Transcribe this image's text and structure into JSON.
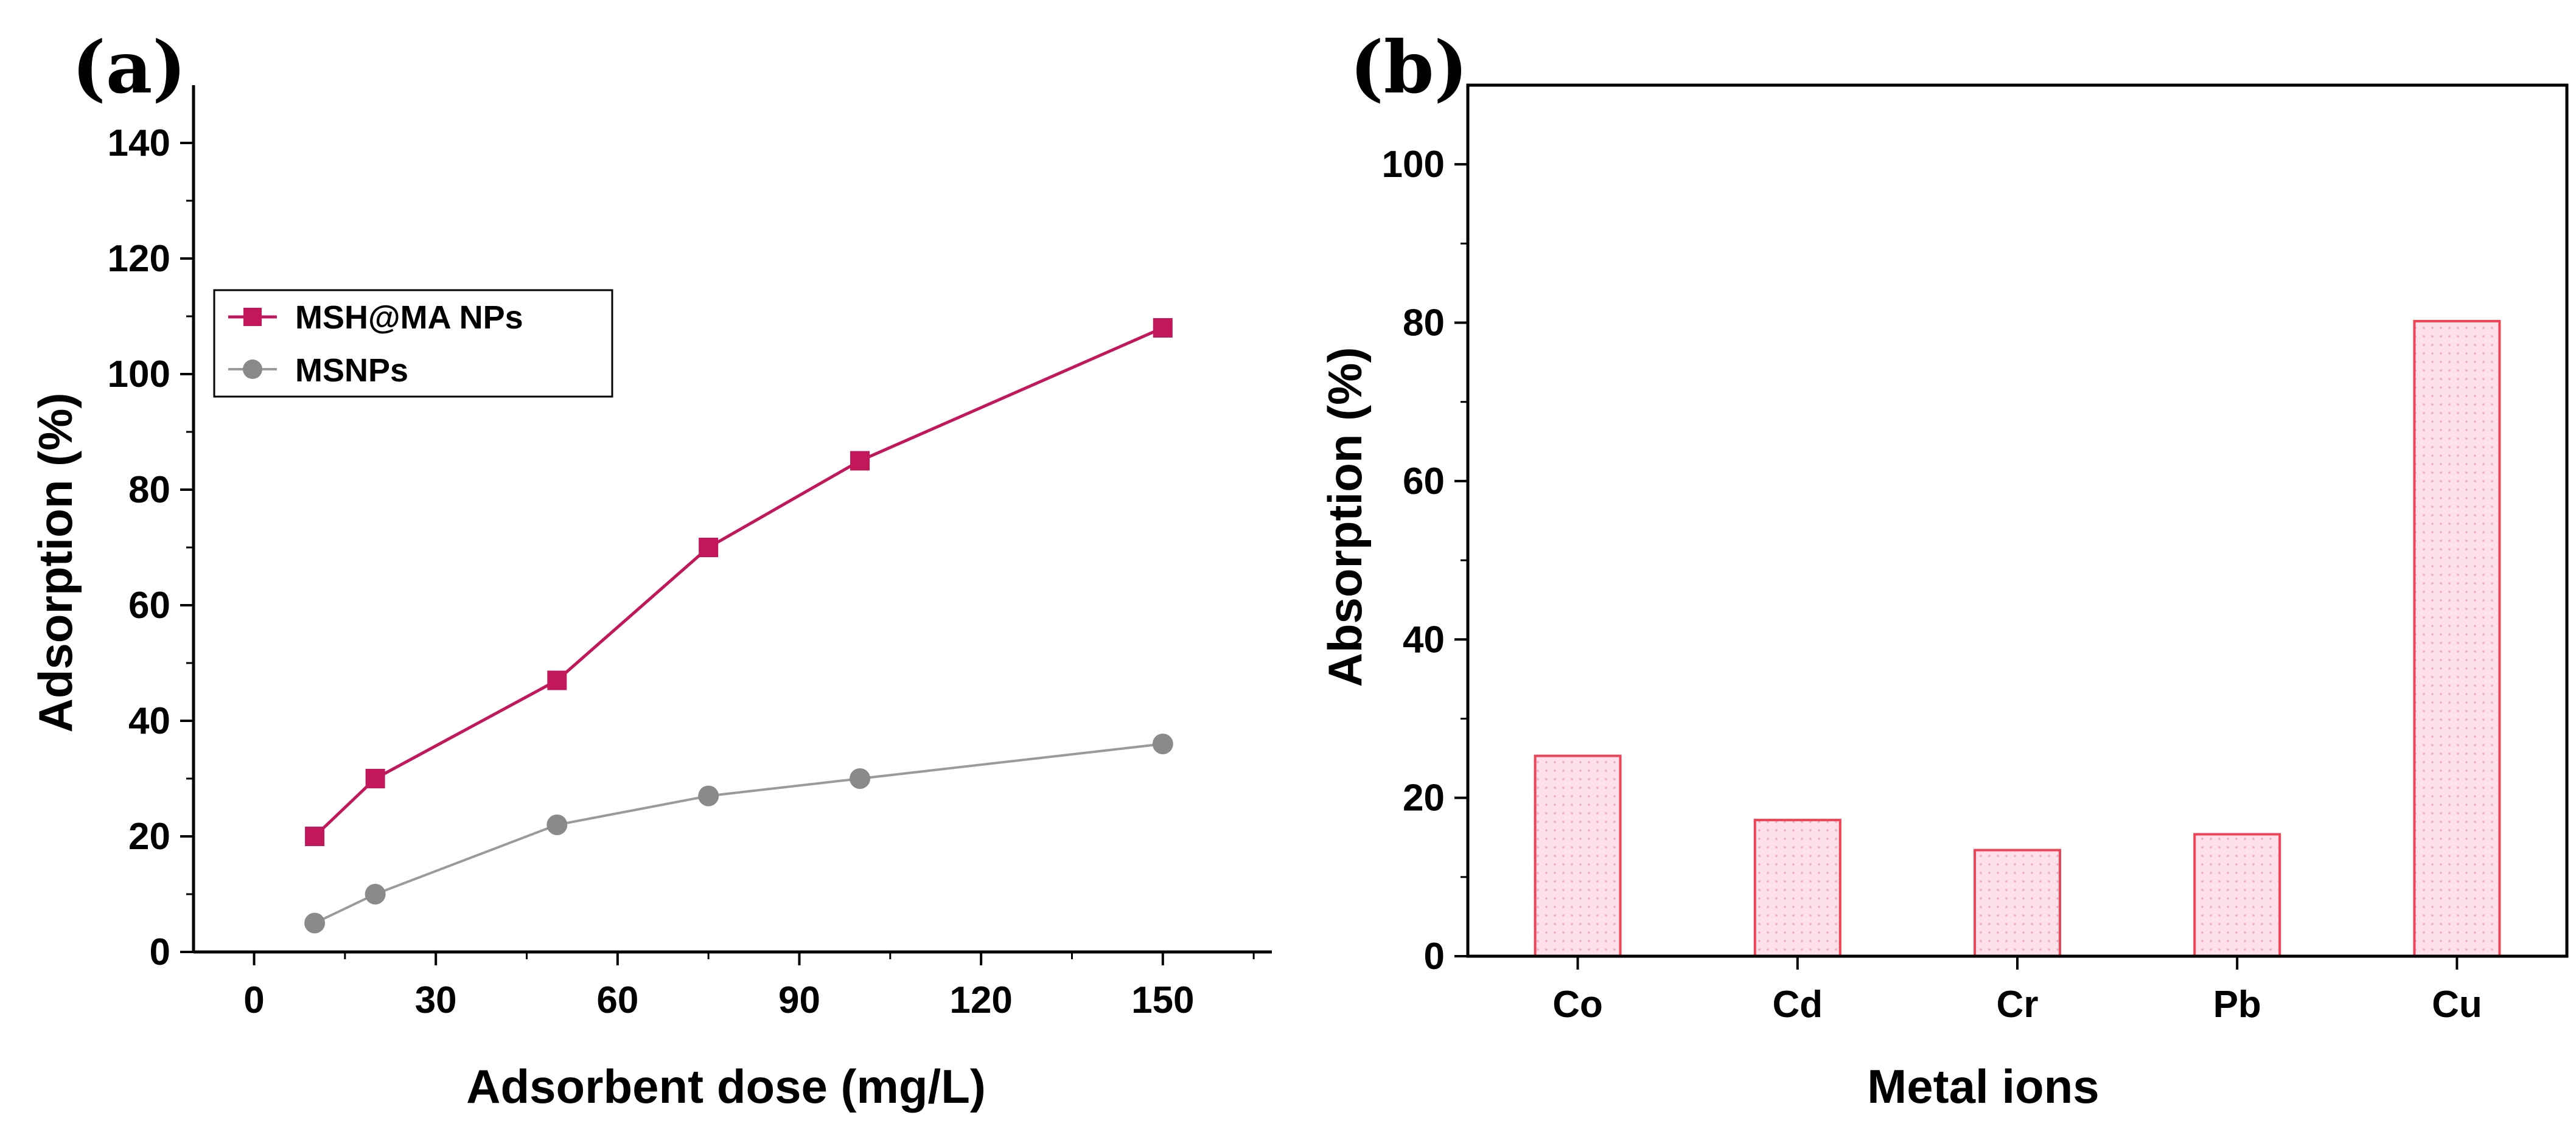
{
  "chart_data": [
    {
      "panel_label": "(a)",
      "type": "line",
      "xlabel": "Adsorbent dose (mg/L)",
      "ylabel": "Adsorption (%)",
      "xlim": [
        -10,
        168
      ],
      "ylim": [
        0,
        150
      ],
      "xticks": [
        0,
        30,
        60,
        90,
        120,
        150
      ],
      "yticks": [
        0,
        20,
        40,
        60,
        80,
        100,
        120,
        140
      ],
      "legend_position": "upper-left",
      "series": [
        {
          "name": "MSH@MA NPs",
          "color": "#c2185b",
          "marker": "square",
          "x": [
            10,
            20,
            50,
            75,
            100,
            150
          ],
          "y": [
            20,
            30,
            47,
            70,
            85,
            108
          ]
        },
        {
          "name": "MSNPs",
          "color": "#8a8a8a",
          "marker": "circle",
          "x": [
            10,
            20,
            50,
            75,
            100,
            150
          ],
          "y": [
            5,
            10,
            22,
            27,
            30,
            36
          ]
        }
      ]
    },
    {
      "panel_label": "(b)",
      "type": "bar",
      "xlabel": "Metal ions",
      "ylabel": "Absorption (%)",
      "ylim": [
        0,
        110
      ],
      "yticks": [
        0,
        20,
        40,
        60,
        80,
        100
      ],
      "categories": [
        "Co",
        "Cd",
        "Cr",
        "Pb",
        "Cu"
      ],
      "values": [
        25.3,
        17.2,
        13.4,
        15.4,
        80.2
      ],
      "bar_fill": "#fde0ea",
      "bar_edge": "#ee4455"
    }
  ]
}
